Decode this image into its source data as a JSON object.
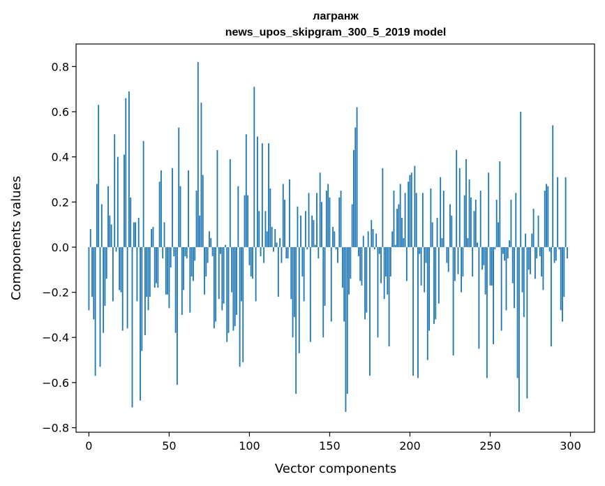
{
  "chart_data": {
    "type": "bar",
    "title_line1": "лагранж",
    "title_line2": "news_upos_skipgram_300_5_2019 model",
    "xlabel": "Vector components",
    "ylabel": "Components values",
    "xlim": [
      -8,
      315
    ],
    "ylim": [
      -0.82,
      0.9
    ],
    "xticks": [
      0,
      50,
      100,
      150,
      200,
      250,
      300
    ],
    "xtick_labels": [
      "0",
      "50",
      "100",
      "150",
      "200",
      "250",
      "300"
    ],
    "yticks": [
      -0.8,
      -0.6,
      -0.4,
      -0.2,
      0.0,
      0.2,
      0.4,
      0.6,
      0.8
    ],
    "ytick_labels": [
      "−0.8",
      "−0.6",
      "−0.4",
      "−0.2",
      "0.0",
      "0.2",
      "0.4",
      "0.6",
      "0.8"
    ],
    "grid": false,
    "bar_color": "#1f77b4",
    "x_start": 0,
    "values": [
      -0.28,
      0.08,
      -0.22,
      -0.32,
      -0.57,
      0.28,
      0.63,
      -0.53,
      0.19,
      -0.38,
      -0.26,
      -0.14,
      0.27,
      0.14,
      0.1,
      -0.24,
      0.5,
      -0.02,
      0.4,
      -0.19,
      -0.2,
      -0.37,
      0.41,
      0.66,
      -0.36,
      0.69,
      0.22,
      -0.71,
      0.11,
      0.11,
      -0.24,
      0.13,
      -0.68,
      -0.46,
      0.47,
      -0.39,
      -0.22,
      -0.28,
      -0.22,
      0.08,
      0.09,
      -0.18,
      -0.16,
      -0.18,
      0.29,
      0.34,
      -0.05,
      0.11,
      -0.21,
      -0.21,
      -0.27,
      -0.09,
      0.35,
      -0.04,
      -0.38,
      -0.61,
      0.53,
      0.27,
      -0.3,
      -0.19,
      -0.04,
      -0.05,
      0.34,
      -0.29,
      -0.13,
      -0.15,
      -0.06,
      0.25,
      0.82,
      0.14,
      0.64,
      0.32,
      -0.21,
      -0.13,
      -0.07,
      0.07,
      0.04,
      -0.04,
      -0.36,
      -0.33,
      0.43,
      -0.23,
      -0.03,
      -0.28,
      -0.25,
      0.01,
      -0.42,
      -0.38,
      0.39,
      -0.2,
      -0.37,
      -0.35,
      -0.3,
      0.27,
      -0.53,
      -0.24,
      -0.51,
      0.23,
      0.5,
      0.23,
      -0.08,
      -0.13,
      -0.14,
      0.71,
      -0.24,
      0.49,
      0.16,
      -0.04,
      0.46,
      -0.07,
      0.16,
      0.07,
      0.46,
      0.26,
      0.09,
      -0.02,
      0.08,
      0.02,
      -0.22,
      0.04,
      -0.07,
      0.28,
      0.21,
      -0.05,
      -0.05,
      0.3,
      -0.23,
      -0.4,
      -0.31,
      -0.65,
      0.18,
      -0.47,
      0.14,
      -0.13,
      -0.24,
      0.16,
      -0.01,
      0.24,
      -0.42,
      0.14,
      0.12,
      0.01,
      0.24,
      -0.05,
      0.33,
      0.2,
      -0.4,
      -0.26,
      0.25,
      0.28,
      0.22,
      -0.33,
      0.09,
      0.07,
      -0.01,
      -0.07,
      0.22,
      0.25,
      -0.18,
      -0.33,
      -0.73,
      -0.65,
      -0.21,
      -0.14,
      0.19,
      0.43,
      0.53,
      0.62,
      -0.04,
      -0.15,
      -0.17,
      0.05,
      -0.32,
      -0.29,
      0.07,
      -0.57,
      0.12,
      0.08,
      -0.01,
      0.06,
      -0.4,
      -0.03,
      -0.16,
      0.35,
      -0.23,
      -0.13,
      -0.21,
      -0.44,
      -0.13,
      0.07,
      0.25,
      0.01,
      0.17,
      0.19,
      0.28,
      0.13,
      0.04,
      0.24,
      -0.15,
      0.29,
      0.32,
      0.33,
      -0.57,
      0.36,
      0.24,
      -0.58,
      -0.03,
      -0.17,
      0.24,
      -0.2,
      -0.07,
      -0.5,
      -0.37,
      0.26,
      0.11,
      -0.34,
      -0.32,
      0.13,
      -0.25,
      0.31,
      0.04,
      0.25,
      0.0,
      -0.07,
      -0.11,
      0.19,
      0.14,
      -0.48,
      -0.15,
      0.43,
      -0.12,
      0.35,
      -0.2,
      -0.13,
      0.23,
      0.39,
      0.04,
      0.3,
      0.22,
      -0.13,
      0.16,
      0.21,
      0.02,
      -0.45,
      0.25,
      -0.1,
      -0.08,
      -0.21,
      -0.58,
      0.33,
      -0.17,
      -0.17,
      -0.43,
      -0.01,
      0.21,
      0.11,
      0.38,
      -0.37,
      -0.03,
      -0.06,
      -0.28,
      -0.05,
      0.03,
      0.21,
      -0.16,
      -0.27,
      0.24,
      -0.58,
      -0.73,
      0.6,
      -0.2,
      -0.31,
      0.06,
      -0.67,
      -0.1,
      -0.12,
      0.06,
      0.17,
      -0.14,
      -0.05,
      0.14,
      -0.04,
      -0.13,
      -0.19,
      0.25,
      0.28,
      0.27,
      -0.02,
      -0.44,
      0.54,
      -0.07,
      -0.06,
      0.31,
      -0.01,
      -0.28,
      -0.33,
      -0.22,
      0.31,
      -0.05
    ]
  }
}
